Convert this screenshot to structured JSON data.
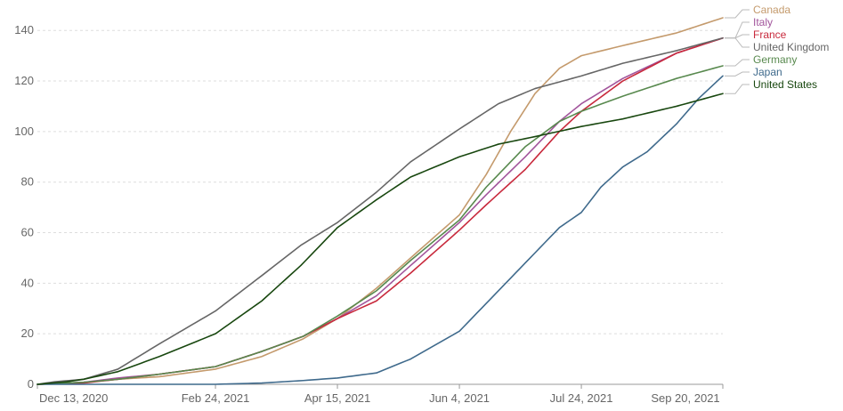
{
  "chart_data": {
    "type": "line",
    "x_type": "date",
    "title": "",
    "xlabel": "",
    "ylabel": "",
    "x_ticks": [
      "Dec 13, 2020",
      "Feb 24, 2021",
      "Apr 15, 2021",
      "Jun 4, 2021",
      "Jul 24, 2021",
      "Sep 20, 2021"
    ],
    "x_tick_dates": [
      "2020-12-13",
      "2021-02-24",
      "2021-04-15",
      "2021-06-04",
      "2021-07-24",
      "2021-09-20"
    ],
    "xlim": [
      "2020-12-13",
      "2021-09-20"
    ],
    "y_ticks": [
      0,
      20,
      40,
      60,
      80,
      100,
      120,
      140
    ],
    "ylim": [
      0,
      145
    ],
    "grid": true,
    "legend_placement": "right",
    "series": [
      {
        "name": "Canada",
        "color": "#c49a6c",
        "points": [
          [
            "2020-12-13",
            0
          ],
          [
            "2021-01-01",
            0.8
          ],
          [
            "2021-01-15",
            2
          ],
          [
            "2021-02-01",
            3
          ],
          [
            "2021-02-24",
            6
          ],
          [
            "2021-03-15",
            11
          ],
          [
            "2021-04-01",
            18
          ],
          [
            "2021-04-15",
            26
          ],
          [
            "2021-05-01",
            38
          ],
          [
            "2021-05-15",
            50
          ],
          [
            "2021-06-04",
            67
          ],
          [
            "2021-06-15",
            83
          ],
          [
            "2021-06-25",
            100
          ],
          [
            "2021-07-05",
            115
          ],
          [
            "2021-07-15",
            125
          ],
          [
            "2021-07-24",
            130
          ],
          [
            "2021-08-10",
            134
          ],
          [
            "2021-09-01",
            139
          ],
          [
            "2021-09-20",
            145
          ]
        ]
      },
      {
        "name": "Italy",
        "color": "#a2559c",
        "points": [
          [
            "2020-12-13",
            0
          ],
          [
            "2021-01-01",
            0.8
          ],
          [
            "2021-01-15",
            2.5
          ],
          [
            "2021-02-01",
            4
          ],
          [
            "2021-02-24",
            7
          ],
          [
            "2021-03-15",
            13
          ],
          [
            "2021-04-01",
            19
          ],
          [
            "2021-04-15",
            26
          ],
          [
            "2021-05-01",
            35
          ],
          [
            "2021-05-15",
            47
          ],
          [
            "2021-06-04",
            64
          ],
          [
            "2021-06-15",
            75
          ],
          [
            "2021-07-01",
            90
          ],
          [
            "2021-07-15",
            104
          ],
          [
            "2021-07-24",
            111
          ],
          [
            "2021-08-10",
            121
          ],
          [
            "2021-09-01",
            131
          ],
          [
            "2021-09-20",
            137
          ]
        ]
      },
      {
        "name": "France",
        "color": "#c8293c",
        "points": [
          [
            "2020-12-13",
            0
          ],
          [
            "2021-01-01",
            0.5
          ],
          [
            "2021-01-15",
            2
          ],
          [
            "2021-02-01",
            4
          ],
          [
            "2021-02-24",
            7
          ],
          [
            "2021-03-15",
            13
          ],
          [
            "2021-04-01",
            19
          ],
          [
            "2021-04-15",
            26
          ],
          [
            "2021-05-01",
            33
          ],
          [
            "2021-05-15",
            44
          ],
          [
            "2021-06-04",
            61
          ],
          [
            "2021-06-15",
            71
          ],
          [
            "2021-07-01",
            85
          ],
          [
            "2021-07-15",
            100
          ],
          [
            "2021-07-24",
            108
          ],
          [
            "2021-08-10",
            120
          ],
          [
            "2021-09-01",
            131
          ],
          [
            "2021-09-20",
            137
          ]
        ]
      },
      {
        "name": "United Kingdom",
        "color": "#666666",
        "points": [
          [
            "2020-12-13",
            0
          ],
          [
            "2020-12-20",
            1
          ],
          [
            "2021-01-01",
            2
          ],
          [
            "2021-01-15",
            6
          ],
          [
            "2021-02-01",
            16
          ],
          [
            "2021-02-24",
            29
          ],
          [
            "2021-03-15",
            43
          ],
          [
            "2021-03-31",
            55
          ],
          [
            "2021-04-15",
            64
          ],
          [
            "2021-05-01",
            76
          ],
          [
            "2021-05-15",
            88
          ],
          [
            "2021-06-04",
            101
          ],
          [
            "2021-06-20",
            111
          ],
          [
            "2021-07-05",
            117
          ],
          [
            "2021-07-24",
            122
          ],
          [
            "2021-08-10",
            127
          ],
          [
            "2021-09-01",
            132
          ],
          [
            "2021-09-20",
            137
          ]
        ]
      },
      {
        "name": "Germany",
        "color": "#58894e",
        "points": [
          [
            "2020-12-13",
            0
          ],
          [
            "2021-01-01",
            0.8
          ],
          [
            "2021-01-15",
            2
          ],
          [
            "2021-02-01",
            4
          ],
          [
            "2021-02-24",
            7
          ],
          [
            "2021-03-15",
            13
          ],
          [
            "2021-04-01",
            19
          ],
          [
            "2021-04-15",
            27
          ],
          [
            "2021-05-01",
            37
          ],
          [
            "2021-05-15",
            49
          ],
          [
            "2021-06-04",
            65
          ],
          [
            "2021-06-15",
            78
          ],
          [
            "2021-07-01",
            94
          ],
          [
            "2021-07-15",
            104
          ],
          [
            "2021-07-24",
            108
          ],
          [
            "2021-08-10",
            114
          ],
          [
            "2021-09-01",
            121
          ],
          [
            "2021-09-20",
            126
          ]
        ]
      },
      {
        "name": "Japan",
        "color": "#3f6a8c",
        "points": [
          [
            "2020-12-13",
            0
          ],
          [
            "2021-02-24",
            0
          ],
          [
            "2021-03-15",
            0.5
          ],
          [
            "2021-04-01",
            1.5
          ],
          [
            "2021-04-15",
            2.5
          ],
          [
            "2021-05-01",
            4.5
          ],
          [
            "2021-05-15",
            10
          ],
          [
            "2021-06-04",
            21
          ],
          [
            "2021-06-15",
            32
          ],
          [
            "2021-07-01",
            48
          ],
          [
            "2021-07-15",
            62
          ],
          [
            "2021-07-24",
            68
          ],
          [
            "2021-08-01",
            78
          ],
          [
            "2021-08-10",
            86
          ],
          [
            "2021-08-20",
            92
          ],
          [
            "2021-09-01",
            103
          ],
          [
            "2021-09-10",
            113
          ],
          [
            "2021-09-20",
            122
          ]
        ]
      },
      {
        "name": "United States",
        "color": "#18470f",
        "points": [
          [
            "2020-12-13",
            0
          ],
          [
            "2020-12-25",
            1
          ],
          [
            "2021-01-01",
            2
          ],
          [
            "2021-01-15",
            5
          ],
          [
            "2021-02-01",
            11
          ],
          [
            "2021-02-24",
            20
          ],
          [
            "2021-03-15",
            33
          ],
          [
            "2021-03-31",
            47
          ],
          [
            "2021-04-15",
            62
          ],
          [
            "2021-05-01",
            73
          ],
          [
            "2021-05-15",
            82
          ],
          [
            "2021-06-04",
            90
          ],
          [
            "2021-06-20",
            95
          ],
          [
            "2021-07-05",
            98
          ],
          [
            "2021-07-24",
            102
          ],
          [
            "2021-08-10",
            105
          ],
          [
            "2021-09-01",
            110
          ],
          [
            "2021-09-20",
            115
          ]
        ]
      }
    ]
  }
}
